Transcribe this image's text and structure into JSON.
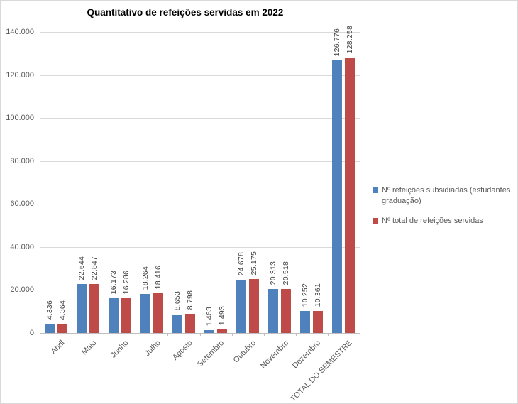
{
  "chart_data": {
    "type": "bar",
    "title": "Quantitativo de refeições servidas em 2022",
    "categories": [
      "Abril",
      "Maio",
      "Junho",
      "Julho",
      "Agosto",
      "Setembro",
      "Outubro",
      "Novembro",
      "Dezembro",
      "TOTAL DO SEMESTRE"
    ],
    "series": [
      {
        "name": "Nº refeições subsidiadas (estudantes graduação)",
        "color": "#4F81BD",
        "values": [
          4336,
          22644,
          16173,
          18264,
          8653,
          1463,
          24678,
          20313,
          10252,
          126776
        ],
        "labels": [
          "4.336",
          "22.644",
          "16.173",
          "18.264",
          "8.653",
          "1.463",
          "24.678",
          "20.313",
          "10.252",
          "126.776"
        ]
      },
      {
        "name": "Nº total de refeições servidas",
        "color": "#BE4B48",
        "values": [
          4364,
          22847,
          16286,
          18416,
          8798,
          1493,
          25175,
          20518,
          10361,
          128258
        ],
        "labels": [
          "4.364",
          "22.847",
          "16.286",
          "18.416",
          "8.798",
          "1.493",
          "25.175",
          "20.518",
          "10.361",
          "128.258"
        ]
      }
    ],
    "y_axis": {
      "min": 0,
      "max": 140000,
      "step": 20000,
      "tick_labels": [
        "0",
        "20.000",
        "40.000",
        "60.000",
        "80.000",
        "100.000",
        "120.000",
        "140.000"
      ]
    },
    "legend_position": "right",
    "grid": true
  }
}
